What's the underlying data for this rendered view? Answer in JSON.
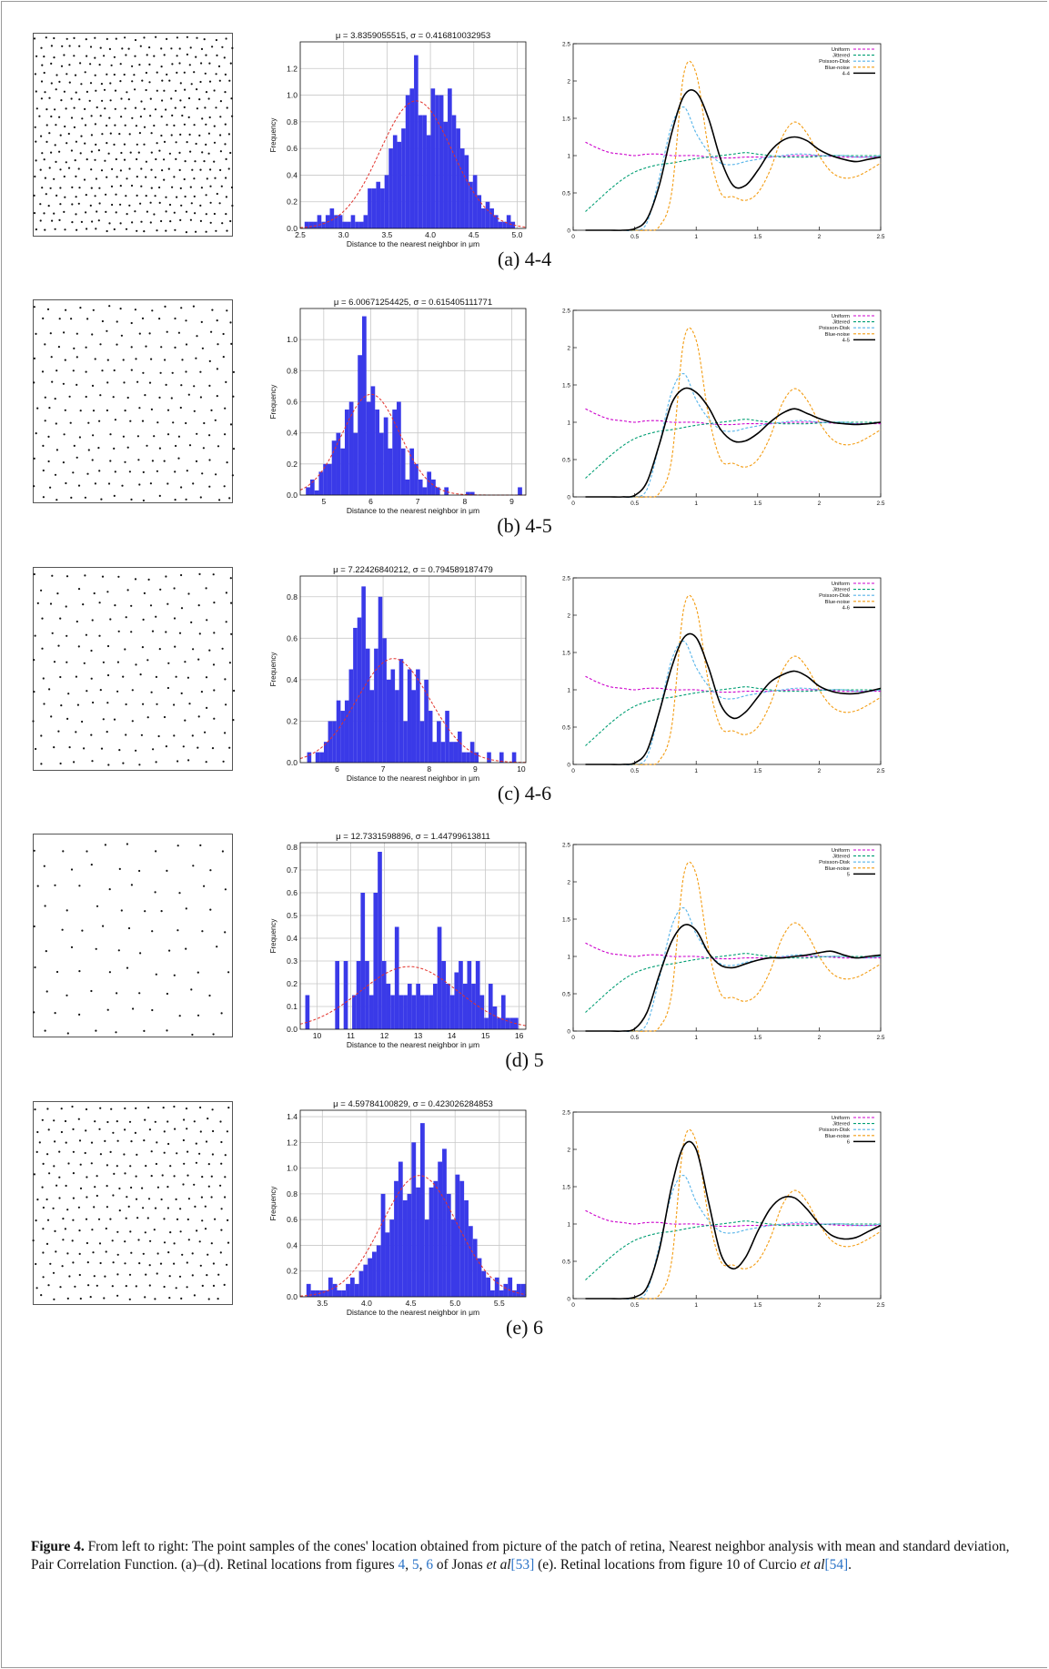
{
  "figure": {
    "label": "Figure 4.",
    "caption_text": "From left to right: The point samples of the cones' location obtained from picture of the patch of retina, Nearest neighbor analysis with mean and standard deviation, Pair Correlation Function. (a)–(d). Retinal locations from figures",
    "caption_refs": [
      "4",
      "5",
      "6"
    ],
    "caption_jonas": "Jonas",
    "caption_etal": "et al",
    "caption_ref53": "[53]",
    "caption_e": "(e). Retinal locations from figure 10 of Curcio",
    "caption_ref54": "[54]"
  },
  "pcf_legend_base": [
    "Uniform",
    "Jittered",
    "Poisson-Disk",
    "Blue-noise"
  ],
  "pcf_colors": {
    "Uniform": "#cc00cc",
    "Jittered": "#009e73",
    "Poisson-Disk": "#56b4e9",
    "Blue-noise": "#f39c12",
    "data": "#000000"
  },
  "hist_colors": {
    "bar": "#3a3ae8",
    "fit": "#e3322b"
  },
  "rows": [
    {
      "sublabel": "(a)  4-4",
      "hist_title": "μ = 3.8359055515,  σ = 0.416810032953",
      "chart_data": {
        "type": "bar",
        "xlabel": "Distance to the nearest neighbor in μm",
        "ylabel": "Frequency",
        "xlim": [
          2.5,
          5.1
        ],
        "ylim": [
          0,
          1.4
        ],
        "xticks": [
          "2.5",
          "3.0",
          "3.5",
          "4.0",
          "4.5",
          "5.0"
        ],
        "xtick_values": [
          2.5,
          3.0,
          3.5,
          4.0,
          4.5,
          5.0
        ],
        "yticks": [
          "0.0",
          "0.2",
          "0.4",
          "0.6",
          "0.8",
          "1.0",
          "1.2"
        ],
        "ytick_values": [
          0,
          0.2,
          0.4,
          0.6,
          0.8,
          1.0,
          1.2
        ],
        "bin_start": 2.55,
        "bin_width": 0.0485,
        "values": [
          0.05,
          0.05,
          0.05,
          0.1,
          0.05,
          0.1,
          0.15,
          0.1,
          0.1,
          0.05,
          0.05,
          0.1,
          0.05,
          0.05,
          0.1,
          0.3,
          0.3,
          0.35,
          0.3,
          0.4,
          0.6,
          0.7,
          0.65,
          0.75,
          1.0,
          1.05,
          1.3,
          0.85,
          0.85,
          0.7,
          1.05,
          1.0,
          1.0,
          0.8,
          1.05,
          0.85,
          0.75,
          0.6,
          0.55,
          0.35,
          0.4,
          0.25,
          0.15,
          0.2,
          0.15,
          0.1,
          0.05,
          0.05,
          0.1,
          0.05
        ],
        "fit": {
          "mu": 3.8359055515,
          "sigma": 0.416810032953
        }
      },
      "pcf_data_label": "4-4",
      "pcf_data": {
        "type": "line",
        "x": [
          0.1,
          0.2,
          0.3,
          0.4,
          0.5,
          0.6,
          0.7,
          0.8,
          0.9,
          1.0,
          1.1,
          1.2,
          1.3,
          1.4,
          1.5,
          1.6,
          1.7,
          1.8,
          1.9,
          2.0,
          2.1,
          2.2,
          2.3,
          2.4,
          2.5
        ],
        "y": [
          0,
          0,
          0,
          0,
          0.02,
          0.15,
          0.6,
          1.3,
          1.8,
          1.85,
          1.5,
          0.95,
          0.6,
          0.6,
          0.8,
          1.05,
          1.2,
          1.25,
          1.2,
          1.08,
          1.0,
          0.95,
          0.92,
          0.95,
          0.98
        ]
      }
    },
    {
      "sublabel": "(b)  4-5",
      "hist_title": "μ = 6.00671254425,  σ = 0.615405111771",
      "chart_data": {
        "type": "bar",
        "xlabel": "Distance to the nearest neighbor in μm",
        "ylabel": "Frequency",
        "xlim": [
          4.5,
          9.3
        ],
        "ylim": [
          0,
          1.2
        ],
        "xticks": [
          "5",
          "6",
          "7",
          "8",
          "9"
        ],
        "xtick_values": [
          5,
          6,
          7,
          8,
          9
        ],
        "yticks": [
          "0.0",
          "0.2",
          "0.4",
          "0.6",
          "0.8",
          "1.0"
        ],
        "ytick_values": [
          0,
          0.2,
          0.4,
          0.6,
          0.8,
          1.0
        ],
        "bin_start": 4.62,
        "bin_width": 0.092,
        "values": [
          0.05,
          0.1,
          0.03,
          0.15,
          0.2,
          0.2,
          0.35,
          0.4,
          0.3,
          0.55,
          0.6,
          0.4,
          0.9,
          1.15,
          0.6,
          0.7,
          0.55,
          0.4,
          0.5,
          0.3,
          0.55,
          0.6,
          0.3,
          0.1,
          0.3,
          0.2,
          0.1,
          0.05,
          0.15,
          0.1,
          0.05,
          0,
          0.05,
          0,
          0,
          0,
          0,
          0.02,
          0.02,
          0,
          0,
          0,
          0,
          0,
          0,
          0,
          0,
          0,
          0,
          0.05
        ],
        "fit": {
          "mu": 6.00671254425,
          "sigma": 0.615405111771
        }
      },
      "pcf_data_label": "4-5",
      "pcf_data": {
        "type": "line",
        "x": [
          0.1,
          0.2,
          0.3,
          0.4,
          0.5,
          0.6,
          0.7,
          0.8,
          0.9,
          1.0,
          1.1,
          1.2,
          1.3,
          1.4,
          1.5,
          1.6,
          1.7,
          1.8,
          1.9,
          2.0,
          2.1,
          2.2,
          2.3,
          2.4,
          2.5
        ],
        "y": [
          0,
          0,
          0,
          0,
          0.02,
          0.2,
          0.7,
          1.25,
          1.45,
          1.4,
          1.2,
          0.9,
          0.75,
          0.75,
          0.85,
          1.0,
          1.12,
          1.18,
          1.12,
          1.05,
          1.0,
          0.98,
          0.97,
          0.98,
          1.0
        ]
      }
    },
    {
      "sublabel": "(c)  4-6",
      "hist_title": "μ = 7.22426840212,  σ = 0.794589187479",
      "chart_data": {
        "type": "bar",
        "xlabel": "Distance to the nearest neighbor in μm",
        "ylabel": "Frequency",
        "xlim": [
          5.2,
          10.1
        ],
        "ylim": [
          0,
          0.9
        ],
        "xticks": [
          "6",
          "7",
          "8",
          "9",
          "10"
        ],
        "xtick_values": [
          6,
          7,
          8,
          9,
          10
        ],
        "yticks": [
          "0.0",
          "0.2",
          "0.4",
          "0.6",
          "0.8"
        ],
        "ytick_values": [
          0,
          0.2,
          0.4,
          0.6,
          0.8
        ],
        "bin_start": 5.35,
        "bin_width": 0.0908,
        "values": [
          0.05,
          0,
          0.05,
          0.05,
          0.1,
          0.2,
          0.2,
          0.3,
          0.25,
          0.3,
          0.45,
          0.65,
          0.7,
          0.85,
          0.55,
          0.35,
          0.55,
          0.8,
          0.6,
          0.4,
          0.45,
          0.35,
          0.5,
          0.2,
          0.45,
          0.35,
          0.45,
          0.2,
          0.4,
          0.25,
          0.1,
          0.2,
          0.1,
          0.25,
          0.1,
          0.1,
          0.15,
          0.05,
          0.05,
          0.1,
          0.05,
          0,
          0,
          0.05,
          0,
          0,
          0.05,
          0,
          0,
          0.05
        ],
        "fit": {
          "mu": 7.22426840212,
          "sigma": 0.794589187479
        }
      },
      "pcf_data_label": "4-6",
      "pcf_data": {
        "type": "line",
        "x": [
          0.1,
          0.2,
          0.3,
          0.4,
          0.5,
          0.6,
          0.7,
          0.8,
          0.9,
          1.0,
          1.1,
          1.2,
          1.3,
          1.4,
          1.5,
          1.6,
          1.7,
          1.8,
          1.9,
          2.0,
          2.1,
          2.2,
          2.3,
          2.4,
          2.5
        ],
        "y": [
          0,
          0,
          0,
          0,
          0.02,
          0.18,
          0.7,
          1.3,
          1.7,
          1.7,
          1.3,
          0.8,
          0.62,
          0.7,
          0.9,
          1.1,
          1.2,
          1.25,
          1.18,
          1.05,
          0.98,
          0.95,
          0.95,
          0.98,
          1.02
        ]
      }
    },
    {
      "sublabel": "(d)  5",
      "hist_title": "μ = 12.7331598896,  σ = 1.44799613811",
      "chart_data": {
        "type": "bar",
        "xlabel": "Distance to the nearest neighbor in μm",
        "ylabel": "Frequency",
        "xlim": [
          9.5,
          16.2
        ],
        "ylim": [
          0,
          0.82
        ],
        "xticks": [
          "10",
          "11",
          "12",
          "13",
          "14",
          "15",
          "16"
        ],
        "xtick_values": [
          10,
          11,
          12,
          13,
          14,
          15,
          16
        ],
        "yticks": [
          "0.0",
          "0.1",
          "0.2",
          "0.3",
          "0.4",
          "0.5",
          "0.6",
          "0.7",
          "0.8"
        ],
        "ytick_values": [
          0,
          0.1,
          0.2,
          0.3,
          0.4,
          0.5,
          0.6,
          0.7,
          0.8
        ],
        "bin_start": 9.65,
        "bin_width": 0.1265,
        "values": [
          0.15,
          0,
          0,
          0,
          0,
          0,
          0,
          0.3,
          0,
          0.3,
          0,
          0.15,
          0.3,
          0.6,
          0.3,
          0.15,
          0.6,
          0.78,
          0.3,
          0.2,
          0.15,
          0.45,
          0.15,
          0.15,
          0.2,
          0.15,
          0.2,
          0.15,
          0.15,
          0.15,
          0.2,
          0.45,
          0.3,
          0.2,
          0.15,
          0.25,
          0.3,
          0.2,
          0.3,
          0.2,
          0.3,
          0.15,
          0.05,
          0.2,
          0.1,
          0.05,
          0.15,
          0.05,
          0.05,
          0.05
        ],
        "fit": {
          "mu": 12.7331598896,
          "sigma": 1.44799613811
        }
      },
      "pcf_data_label": "5",
      "pcf_data": {
        "type": "line",
        "x": [
          0.1,
          0.2,
          0.3,
          0.4,
          0.5,
          0.6,
          0.7,
          0.8,
          0.9,
          1.0,
          1.1,
          1.2,
          1.3,
          1.4,
          1.5,
          1.6,
          1.7,
          1.8,
          1.9,
          2.0,
          2.1,
          2.2,
          2.3,
          2.4,
          2.5
        ],
        "y": [
          0,
          0,
          0,
          0,
          0.03,
          0.25,
          0.75,
          1.2,
          1.42,
          1.35,
          1.05,
          0.88,
          0.85,
          0.9,
          0.95,
          0.98,
          0.98,
          1.0,
          1.02,
          1.05,
          1.07,
          1.02,
          0.98,
          1.0,
          1.02
        ]
      }
    },
    {
      "sublabel": "(e)  6",
      "hist_title": "μ = 4.59784100829,  σ = 0.423026284853",
      "chart_data": {
        "type": "bar",
        "xlabel": "Distance to the nearest neighbor in μm",
        "ylabel": "Frequency",
        "xlim": [
          3.25,
          5.8
        ],
        "ylim": [
          0,
          1.45
        ],
        "xticks": [
          "3.5",
          "4.0",
          "4.5",
          "5.0",
          "5.5"
        ],
        "xtick_values": [
          3.5,
          4.0,
          4.5,
          5.0,
          5.5
        ],
        "yticks": [
          "0.0",
          "0.2",
          "0.4",
          "0.6",
          "0.8",
          "1.0",
          "1.2",
          "1.4"
        ],
        "ytick_values": [
          0,
          0.2,
          0.4,
          0.6,
          0.8,
          1.0,
          1.2,
          1.4
        ],
        "bin_start": 3.32,
        "bin_width": 0.0495,
        "values": [
          0.1,
          0.05,
          0.05,
          0.05,
          0.05,
          0.15,
          0.1,
          0.05,
          0.05,
          0.1,
          0.15,
          0.1,
          0.2,
          0.25,
          0.3,
          0.35,
          0.4,
          0.8,
          0.5,
          0.6,
          0.9,
          1.05,
          0.75,
          0.8,
          1.2,
          0.85,
          1.35,
          0.6,
          0.85,
          0.9,
          1.05,
          1.15,
          0.8,
          0.6,
          0.95,
          0.9,
          0.75,
          0.55,
          0.45,
          0.3,
          0.2,
          0.15,
          0.05,
          0.15,
          0.05,
          0.1,
          0.15,
          0.05,
          0.1,
          0.1
        ],
        "fit": {
          "mu": 4.59784100829,
          "sigma": 0.423026284853
        }
      },
      "pcf_data_label": "6",
      "pcf_data": {
        "type": "line",
        "x": [
          0.1,
          0.2,
          0.3,
          0.4,
          0.5,
          0.6,
          0.7,
          0.8,
          0.9,
          1.0,
          1.1,
          1.2,
          1.3,
          1.4,
          1.5,
          1.6,
          1.7,
          1.8,
          1.9,
          2.0,
          2.1,
          2.2,
          2.3,
          2.4,
          2.5
        ],
        "y": [
          0,
          0,
          0,
          0,
          0.02,
          0.15,
          0.65,
          1.5,
          2.05,
          2.0,
          1.3,
          0.6,
          0.4,
          0.55,
          0.9,
          1.2,
          1.35,
          1.35,
          1.2,
          1.0,
          0.85,
          0.8,
          0.82,
          0.9,
          0.98
        ]
      }
    }
  ],
  "pcf_axes": {
    "xlim": [
      0,
      2.5
    ],
    "ylim": [
      0,
      2.5
    ],
    "xticks": [
      "0",
      "0.5",
      "1",
      "1.5",
      "2",
      "2.5"
    ],
    "xtick_values": [
      0,
      0.5,
      1,
      1.5,
      2,
      2.5
    ],
    "yticks": [
      "0",
      "0.5",
      "1",
      "1.5",
      "2",
      "2.5"
    ],
    "ytick_values": [
      0,
      0.5,
      1,
      1.5,
      2,
      2.5
    ]
  },
  "pcf_reference": {
    "x": [
      0.1,
      0.2,
      0.3,
      0.4,
      0.5,
      0.6,
      0.7,
      0.8,
      0.9,
      1.0,
      1.1,
      1.2,
      1.3,
      1.4,
      1.5,
      1.6,
      1.7,
      1.8,
      1.9,
      2.0,
      2.1,
      2.2,
      2.3,
      2.4,
      2.5
    ],
    "Uniform": [
      1.18,
      1.1,
      1.04,
      1.02,
      1.0,
      1.02,
      1.02,
      1.0,
      1.0,
      1.0,
      0.98,
      0.97,
      0.97,
      0.98,
      0.98,
      0.98,
      0.99,
      1.0,
      1.0,
      1.0,
      0.99,
      0.98,
      0.98,
      0.98,
      0.98
    ],
    "Jittered": [
      0.25,
      0.4,
      0.55,
      0.68,
      0.78,
      0.84,
      0.88,
      0.9,
      0.93,
      0.96,
      0.98,
      1.0,
      1.02,
      1.04,
      1.02,
      1.0,
      0.98,
      0.98,
      0.98,
      0.99,
      1.0,
      1.0,
      1.0,
      1.0,
      1.0
    ],
    "Poisson-Disk": [
      0,
      0,
      0,
      0,
      0,
      0.1,
      0.7,
      1.4,
      1.65,
      1.3,
      1.05,
      0.9,
      0.88,
      0.92,
      0.95,
      0.98,
      1.0,
      1.02,
      1.02,
      1.0,
      1.0,
      1.0,
      0.98,
      0.98,
      1.0
    ],
    "Blue-noise": [
      0,
      0,
      0,
      0,
      0,
      0,
      0.05,
      0.5,
      2.1,
      2.1,
      1.1,
      0.5,
      0.45,
      0.4,
      0.5,
      0.8,
      1.25,
      1.45,
      1.3,
      1.0,
      0.78,
      0.7,
      0.72,
      0.8,
      0.9
    ]
  }
}
